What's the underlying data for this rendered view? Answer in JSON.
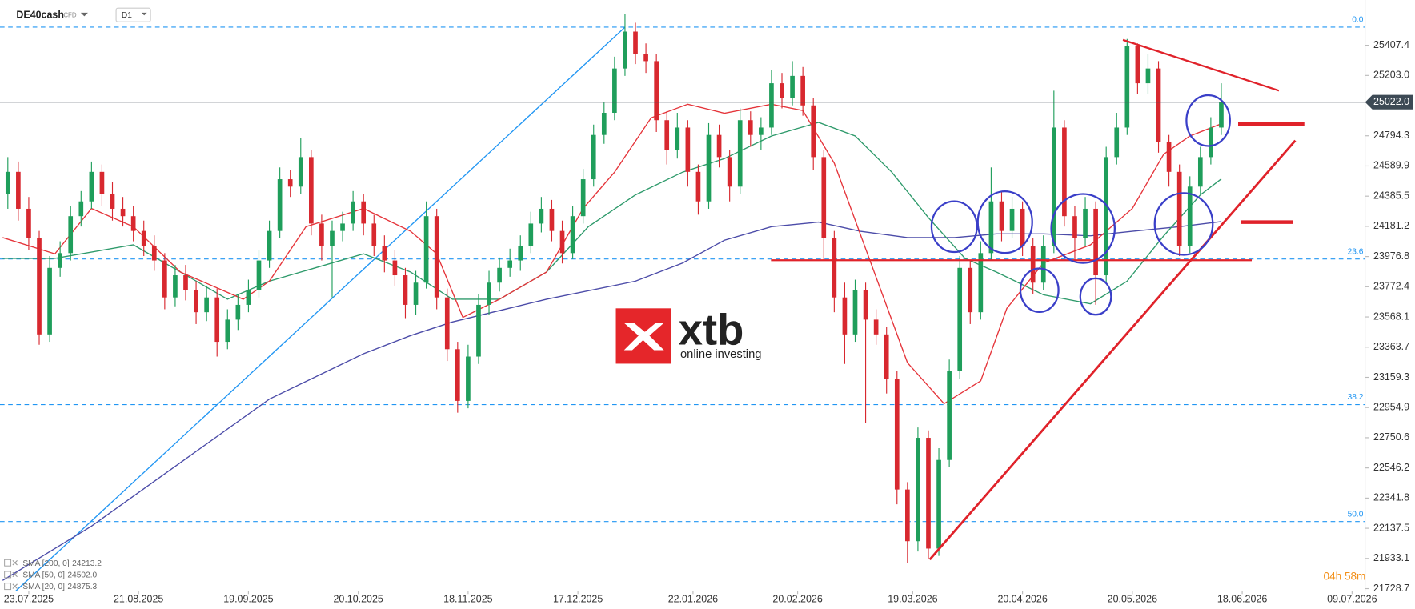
{
  "header": {
    "symbol": "DE40cash",
    "instrument_type": "CFD",
    "timeframe": "D1"
  },
  "logo": {
    "name": "xtb",
    "tagline": "online investing"
  },
  "timer": "04h 58m",
  "chart_data": {
    "type": "candlestick",
    "up_color": "#1f9e5b",
    "down_color": "#d8282f",
    "xlim": [
      -5.5,
      255.5
    ],
    "ylim": [
      21649,
      25714
    ],
    "yticks": [
      25407.4,
      {
        "value": 25203,
        "label": "25203.0"
      },
      24794.3,
      24589.9,
      24385.5,
      24181.2,
      23976.8,
      23772.4,
      23568.1,
      23363.7,
      23159.3,
      22954.9,
      22750.6,
      22546.2,
      22341.8,
      22137.5,
      21933.1,
      21728.7
    ],
    "xticks": [
      {
        "value": 0,
        "label": "23.07.2025"
      },
      {
        "value": 21,
        "label": "21.08.2025"
      },
      {
        "value": 42,
        "label": "19.09.2025"
      },
      {
        "value": 63,
        "label": "20.10.2025"
      },
      {
        "value": 84,
        "label": "18.11.2025"
      },
      {
        "value": 105,
        "label": "17.12.2025"
      },
      {
        "value": 127,
        "label": "22.01.2026"
      },
      {
        "value": 147,
        "label": "20.02.2026"
      },
      {
        "value": 169,
        "label": "19.03.2026"
      },
      {
        "value": 190,
        "label": "20.04.2026"
      },
      {
        "value": 211,
        "label": "20.05.2026"
      },
      {
        "value": 232,
        "label": "18.06.2026"
      },
      {
        "value": 253,
        "label": "09.07.2026"
      }
    ],
    "last_price": {
      "value": 25022,
      "label": "25022.0"
    },
    "fib_levels": [
      {
        "label": "0.0",
        "value": 25530
      },
      {
        "label": "23.6",
        "value": 23960
      },
      {
        "label": "38.2",
        "value": 22975
      },
      {
        "label": "50.0",
        "value": 22183
      }
    ],
    "fib_line": {
      "x": [
        -5,
        114
      ],
      "y": [
        21630,
        25530
      ],
      "color": "#2196f3"
    },
    "candles": {
      "x": [
        -4,
        -2,
        0,
        2,
        4,
        6,
        8,
        10,
        12,
        14,
        16,
        18,
        20,
        22,
        24,
        26,
        28,
        30,
        32,
        34,
        36,
        38,
        40,
        42,
        44,
        46,
        48,
        50,
        52,
        54,
        56,
        58,
        60,
        62,
        64,
        66,
        68,
        70,
        72,
        74,
        76,
        78,
        80,
        82,
        84,
        86,
        88,
        90,
        92,
        94,
        96,
        98,
        100,
        102,
        104,
        106,
        108,
        110,
        112,
        114,
        116,
        118,
        120,
        122,
        124,
        126,
        128,
        130,
        132,
        134,
        136,
        138,
        140,
        142,
        144,
        146,
        148,
        150,
        152,
        154,
        156,
        158,
        160,
        162,
        164,
        166,
        168,
        170,
        172,
        174,
        176,
        178,
        180,
        182,
        184,
        186,
        188,
        190,
        192,
        194,
        196,
        198,
        200,
        202,
        204,
        206,
        208,
        210,
        212,
        214,
        216,
        218,
        220,
        222,
        224,
        226,
        228
      ],
      "open": [
        24400,
        24550,
        24300,
        24100,
        23450,
        23900,
        24000,
        24250,
        24350,
        24550,
        24400,
        24300,
        24250,
        24150,
        24050,
        23950,
        23700,
        23850,
        23750,
        23600,
        23700,
        23400,
        23550,
        23650,
        23750,
        23950,
        24150,
        24500,
        24450,
        24650,
        24200,
        24050,
        24150,
        24200,
        24350,
        24200,
        24050,
        23950,
        23850,
        23650,
        23800,
        24250,
        23700,
        23350,
        23000,
        23300,
        23650,
        23800,
        23900,
        23950,
        24050,
        24200,
        24300,
        24150,
        24000,
        24250,
        24500,
        24800,
        24950,
        25250,
        25500,
        25350,
        25300,
        24900,
        24700,
        24850,
        24550,
        24350,
        24800,
        24650,
        24450,
        24900,
        24800,
        24850,
        25150,
        25050,
        25200,
        25000,
        24650,
        24100,
        23700,
        23450,
        23750,
        23550,
        23450,
        23150,
        22400,
        22050,
        22750,
        22000,
        22600,
        23200,
        23900,
        23600,
        24000,
        24350,
        24150,
        24300,
        24050,
        23800,
        24050,
        24850,
        24250,
        24100,
        24300,
        23850,
        24650,
        24850,
        25400,
        25150,
        25250,
        24750,
        24550,
        24050,
        24450,
        24650,
        24850
      ],
      "high": [
        24650,
        24620,
        24380,
        24150,
        23980,
        24080,
        24320,
        24420,
        24620,
        24600,
        24480,
        24380,
        24320,
        24220,
        24120,
        24000,
        23920,
        23920,
        23810,
        23780,
        23760,
        23620,
        23720,
        23820,
        24020,
        24220,
        24580,
        24560,
        24780,
        24700,
        24260,
        24220,
        24280,
        24420,
        24400,
        24260,
        24120,
        24020,
        23900,
        23880,
        24350,
        24300,
        23760,
        23400,
        23380,
        23720,
        23880,
        23970,
        24030,
        24120,
        24280,
        24380,
        24360,
        24220,
        24320,
        24570,
        24870,
        25020,
        25330,
        25620,
        25560,
        25420,
        25350,
        24960,
        24950,
        24900,
        24600,
        24880,
        24870,
        24700,
        24980,
        24960,
        24920,
        25240,
        25220,
        25300,
        25260,
        25050,
        24700,
        24150,
        23800,
        23820,
        23800,
        23620,
        23500,
        23200,
        22450,
        22820,
        22800,
        22680,
        23280,
        23980,
        23950,
        24080,
        24580,
        24420,
        24380,
        24350,
        24100,
        24120,
        25100,
        24900,
        24320,
        24380,
        24350,
        24720,
        24950,
        25450,
        25420,
        25350,
        25300,
        24800,
        24600,
        24520,
        24720,
        24920,
        25150
      ],
      "low": [
        24300,
        24220,
        24020,
        23380,
        23400,
        23840,
        23950,
        24180,
        24300,
        24320,
        24220,
        24180,
        24080,
        23980,
        23880,
        23620,
        23640,
        23680,
        23520,
        23540,
        23300,
        23350,
        23480,
        23600,
        23700,
        23900,
        24100,
        24380,
        24400,
        24120,
        23950,
        23700,
        24080,
        24150,
        24120,
        23980,
        23870,
        23780,
        23560,
        23580,
        23760,
        23620,
        23270,
        22920,
        22950,
        23250,
        23580,
        23740,
        23840,
        23880,
        24000,
        24140,
        24080,
        23930,
        23960,
        24200,
        24450,
        24740,
        24900,
        25200,
        25280,
        25220,
        24820,
        24600,
        24640,
        24450,
        24260,
        24300,
        24580,
        24350,
        24400,
        24720,
        24700,
        24800,
        24980,
        25000,
        24930,
        24560,
        23950,
        23600,
        23250,
        23400,
        22850,
        23380,
        23050,
        22300,
        21900,
        21980,
        21930,
        21950,
        22550,
        23150,
        23520,
        23550,
        23950,
        24080,
        24100,
        23980,
        23720,
        23750,
        24000,
        24180,
        23950,
        24050,
        23650,
        23800,
        24600,
        24800,
        25080,
        25080,
        24680,
        24450,
        23980,
        24000,
        24400,
        24600,
        24800
      ],
      "close": [
        24550,
        24300,
        24100,
        23450,
        23900,
        24000,
        24250,
        24350,
        24550,
        24400,
        24300,
        24250,
        24150,
        24050,
        23950,
        23700,
        23850,
        23750,
        23600,
        23700,
        23400,
        23550,
        23650,
        23750,
        23950,
        24150,
        24500,
        24450,
        24650,
        24200,
        24050,
        24150,
        24200,
        24350,
        24200,
        24050,
        23950,
        23850,
        23650,
        23800,
        24250,
        23700,
        23350,
        23000,
        23300,
        23650,
        23800,
        23900,
        23950,
        24050,
        24200,
        24300,
        24150,
        24000,
        24250,
        24500,
        24800,
        24950,
        25250,
        25500,
        25350,
        25300,
        24900,
        24700,
        24850,
        24550,
        24350,
        24800,
        24650,
        24450,
        24900,
        24800,
        24850,
        25150,
        25050,
        25200,
        25000,
        24650,
        24100,
        23700,
        23450,
        23750,
        23550,
        23450,
        23150,
        22400,
        22050,
        22750,
        22000,
        22600,
        23200,
        23900,
        23600,
        24000,
        24350,
        24150,
        24300,
        24050,
        23800,
        24050,
        24850,
        24250,
        24100,
        24300,
        23850,
        24650,
        24850,
        25400,
        25150,
        25250,
        24750,
        24550,
        24050,
        24450,
        24650,
        24850,
        25022
      ]
    },
    "series": [
      {
        "name": "SMA [200, 0]",
        "color": "#4b4ba8",
        "last_value": 24213.2,
        "x": [
          -5,
          12,
          29,
          46,
          64,
          73,
          81,
          99,
          116,
          125,
          133,
          142,
          151,
          159,
          168,
          177,
          185,
          194,
          203,
          211,
          220,
          228
        ],
        "values": [
          21784,
          22152,
          22582,
          23012,
          23319,
          23442,
          23534,
          23688,
          23810,
          23933,
          24087,
          24179,
          24210,
          24148,
          24105,
          24105,
          24130,
          24130,
          24117,
          24148,
          24179,
          24213.2
        ]
      },
      {
        "name": "SMA [50, 0]",
        "color": "#2e9a6b",
        "last_value": {
          "value": 24502,
          "label": "24502.0"
        },
        "x": [
          -5,
          5,
          20,
          38,
          46,
          64,
          73,
          81,
          90,
          99,
          107,
          116,
          125,
          133,
          142,
          151,
          158,
          165,
          172,
          179,
          185,
          194,
          203,
          210,
          217,
          224,
          228
        ],
        "values": [
          23964,
          23964,
          24056,
          23688,
          23810,
          23995,
          23872,
          23688,
          23688,
          23872,
          24179,
          24394,
          24548,
          24640,
          24793,
          24885,
          24793,
          24548,
          24240,
          23964,
          23872,
          23718,
          23657,
          23810,
          24117,
          24394,
          24502
        ]
      },
      {
        "name": "SMA [20, 0]",
        "color": "#e5343a",
        "last_value": 24875.3,
        "x": [
          -5,
          5,
          12,
          20,
          29,
          41,
          46,
          53,
          64,
          73,
          78,
          83,
          90,
          99,
          106,
          112,
          119,
          126,
          133,
          142,
          148,
          154,
          161,
          168,
          175,
          182,
          187,
          194,
          203,
          211,
          217,
          222,
          228
        ],
        "values": [
          24105,
          23995,
          24302,
          24179,
          23872,
          23688,
          23810,
          24179,
          24302,
          24148,
          23995,
          23565,
          23688,
          23872,
          24302,
          24548,
          24916,
          25008,
          24947,
          25008,
          24965,
          24609,
          23933,
          23258,
          22981,
          23135,
          23626,
          23933,
          24056,
          24302,
          24670,
          24793,
          24875.3
        ]
      }
    ]
  }
}
